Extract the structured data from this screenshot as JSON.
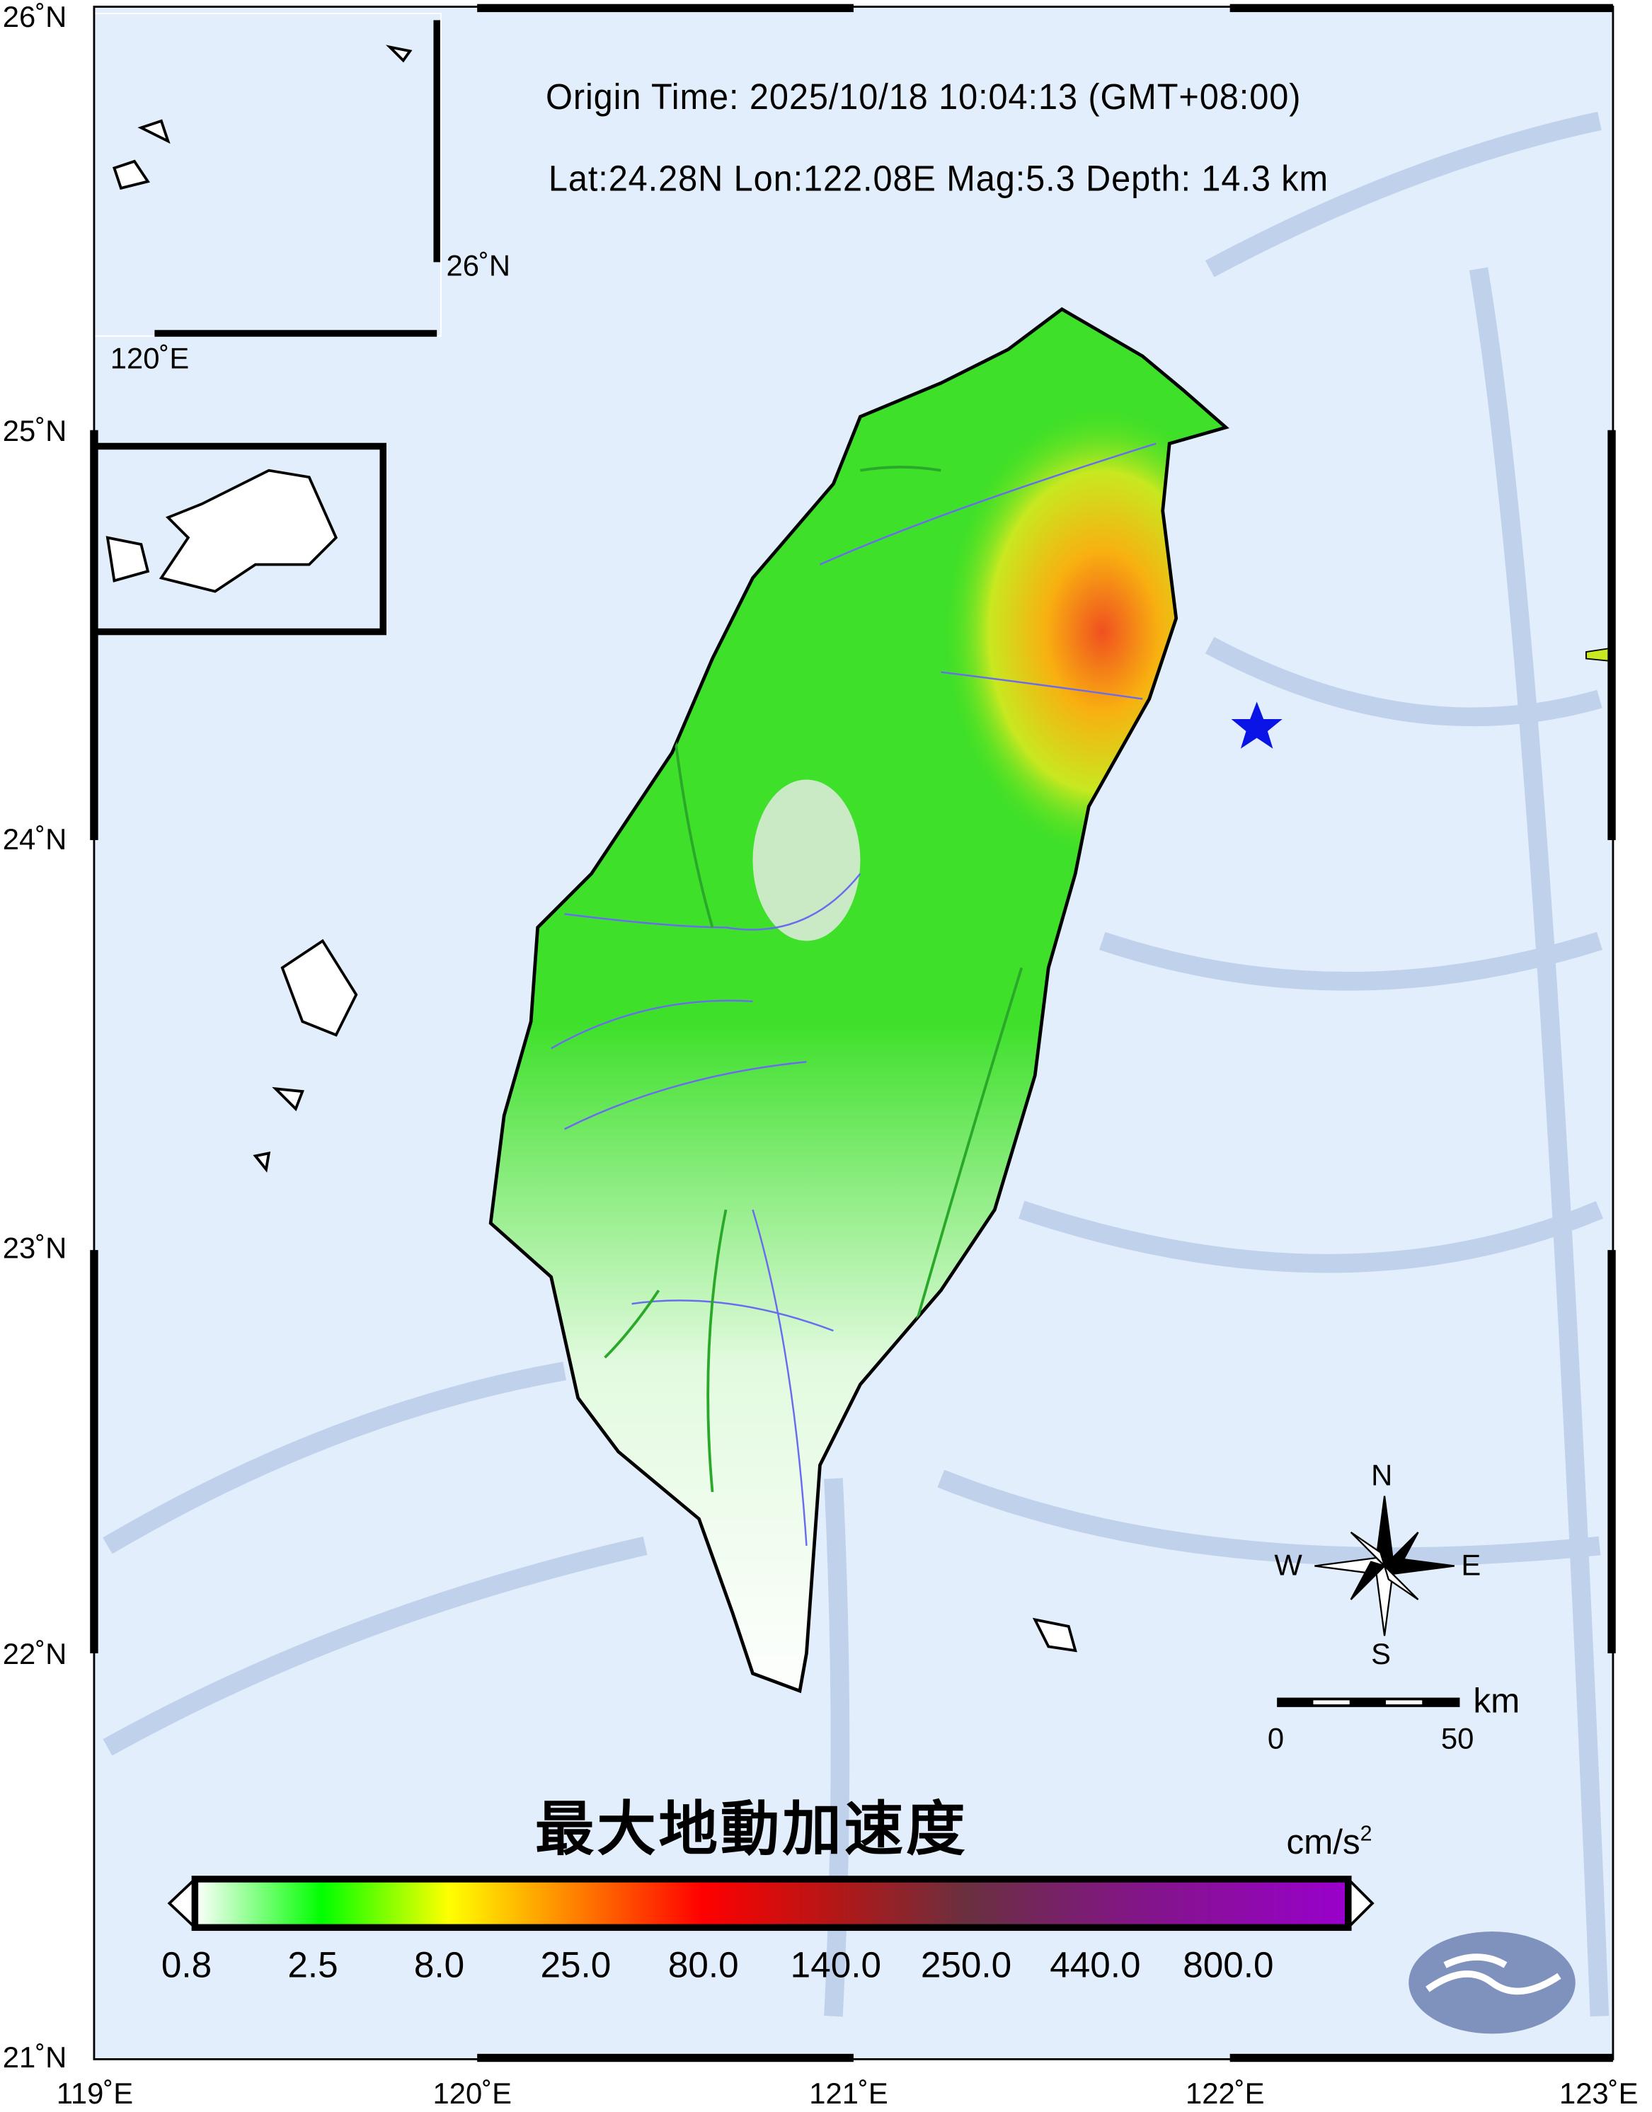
{
  "header": {
    "origin_time": "Origin Time: 2025/10/18  10:04:13  (GMT+08:00)",
    "event_params": "Lat:24.28N  Lon:122.08E  Mag:5.3  Depth: 14.3 km"
  },
  "epicenter": {
    "lat": 24.28,
    "lon": 122.08,
    "marker_color": "#0a14e6",
    "icon": "star-icon"
  },
  "axes": {
    "x_labels": [
      "119˚E",
      "120˚E",
      "121˚E",
      "122˚E",
      "123˚E"
    ],
    "y_labels": [
      "21˚N",
      "22˚N",
      "23˚N",
      "24˚N",
      "25˚N",
      "26˚N"
    ],
    "lon_range": [
      119,
      123
    ],
    "lat_range": [
      21,
      26
    ]
  },
  "inset": {
    "lat_label": "26˚N",
    "lon_label": "120˚E"
  },
  "compass": {
    "n": "N",
    "s": "S",
    "e": "E",
    "w": "W"
  },
  "scale_bar": {
    "unit": "km",
    "labels": [
      "0",
      "50"
    ]
  },
  "legend": {
    "title": "最大地動加速度",
    "unit": "cm/s",
    "unit_sup": "2",
    "tick_labels": [
      "0.8",
      "2.5",
      "8.0",
      "25.0",
      "80.0",
      "140.0",
      "250.0",
      "440.0",
      "800.0"
    ],
    "colors": [
      "#ffffff",
      "#00ff00",
      "#ffff00",
      "#ff8000",
      "#ff0000",
      "#a02020",
      "#6a3040",
      "#801880",
      "#9900cc"
    ]
  },
  "colors": {
    "ocean": "#e3eefc",
    "land_low": "#ffffff",
    "land_mid": "#22e01a",
    "land_high": "#f07020",
    "rivers": "#6a6cf0",
    "faults": "#2aa82a"
  }
}
